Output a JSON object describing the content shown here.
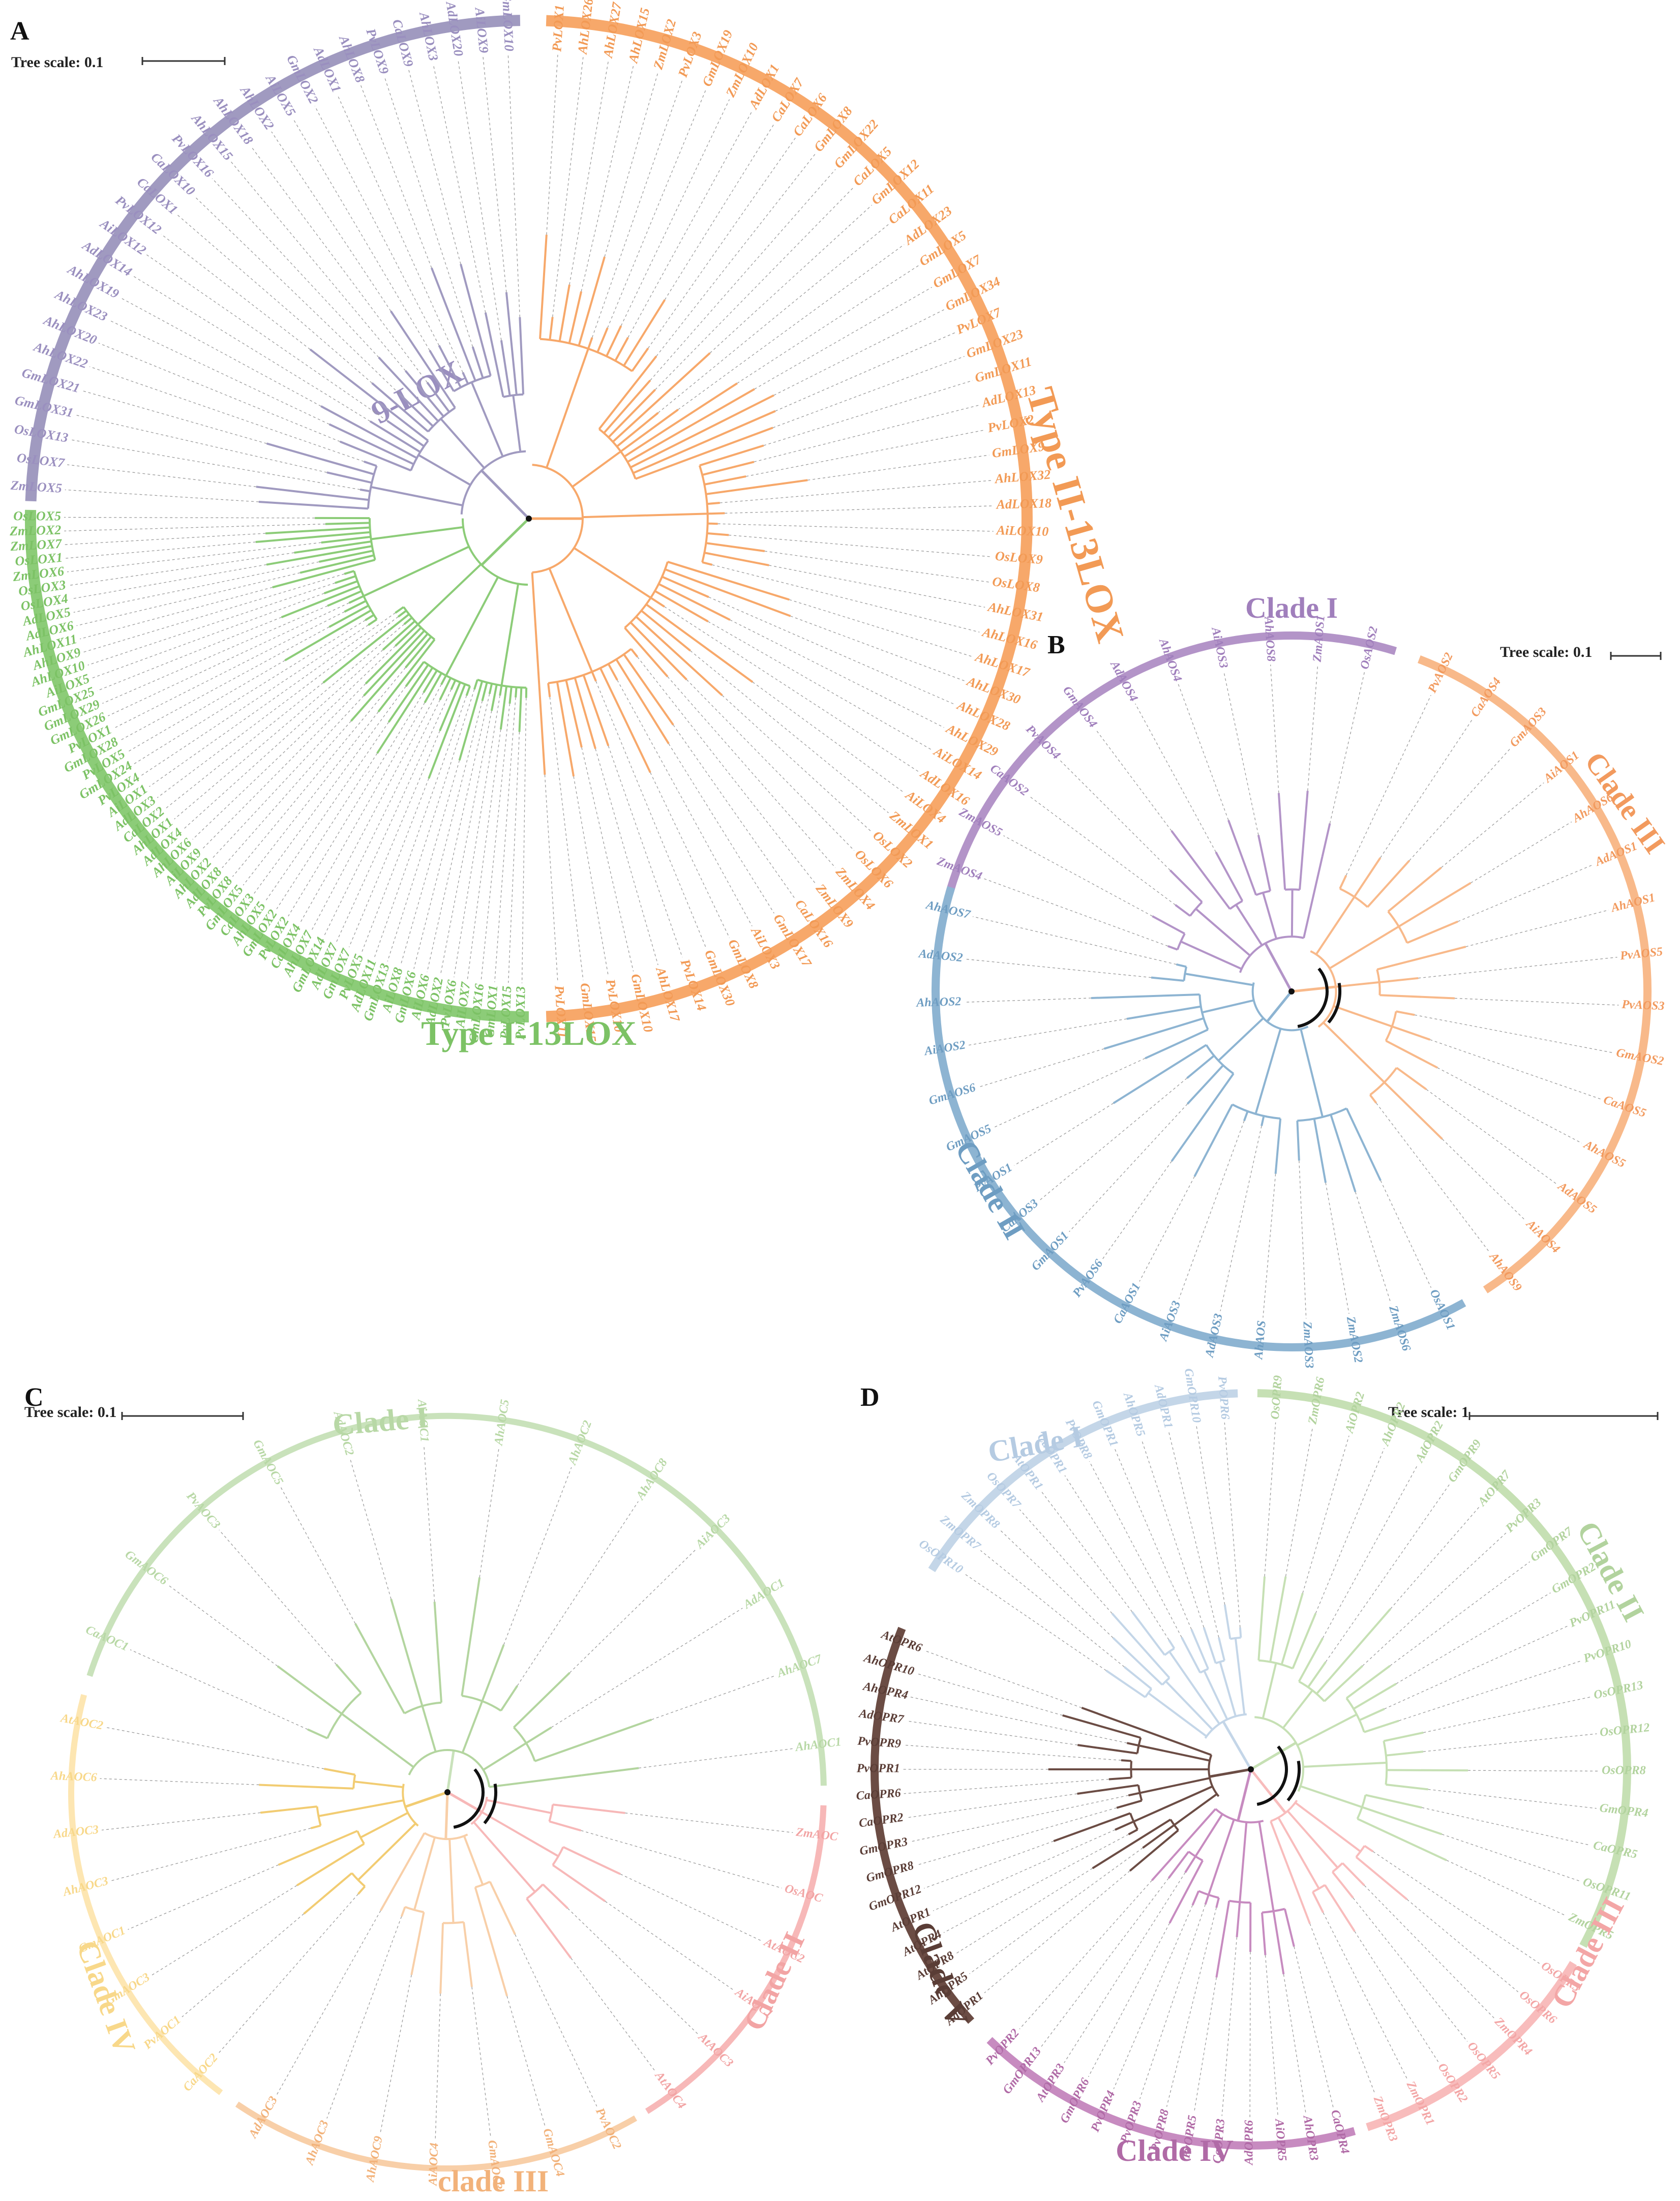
{
  "panels": [
    {
      "id": "A",
      "letter": "A",
      "scale_text": "Tree scale: 0.1",
      "center_label": "",
      "clades": [
        {
          "name": "9-LOX",
          "color": "#a09ac0",
          "label_color": "#9a8fbf",
          "taxa": [
            "ZmLOX5",
            "OsLOX7",
            "OsLOX13",
            "GmLOX31",
            "GmLOX21",
            "AhLOX22",
            "AhLOX20",
            "AhLOX23",
            "AhLOX19",
            "AdLOX14",
            "AiLOX12",
            "PvLOX12",
            "CaLOX1",
            "CaLOX10",
            "PvLOX16",
            "AhLOX15",
            "AhLOX18",
            "AhLOX2",
            "AiLOX5",
            "GmLOX2",
            "AdLOX1",
            "AhLOX8",
            "PvLOX9",
            "CaLOX9",
            "AhLOX3",
            "AdLOX20",
            "AiLOX9",
            "GmLOX10"
          ]
        },
        {
          "name": "Type II-13LOX",
          "color": "#f7a86a",
          "label_color": "#f29a55",
          "taxa": [
            "PvLOX1",
            "AhLOX26",
            "AhLOX27",
            "AhLOX15",
            "ZmLOX2",
            "PvLOX3",
            "GmLOX19",
            "ZmLOX10",
            "AdLOX1",
            "CaLOX7",
            "CaLOX6",
            "GmLOX8",
            "GmLOX22",
            "CaLOX5",
            "GmLOX12",
            "CaLOX11",
            "AdLOX23",
            "GmLOX5",
            "GmLOX7",
            "GmLOX34",
            "PvLOX7",
            "GmLOX23",
            "GmLOX11",
            "AdLOX13",
            "PvLOX2",
            "GmLOX9",
            "AhLOX32",
            "AdLOX18",
            "AiLOX10",
            "OsLOX9",
            "OsLOX8",
            "AhLOX31",
            "AhLOX16",
            "AhLOX17",
            "AhLOX30",
            "AhLOX28",
            "AhLOX29",
            "AiLOX14",
            "AdLOX16",
            "AiLOX4",
            "ZmLOX1",
            "OsLOX2",
            "OsLOX6",
            "ZmLOX4",
            "ZmLOX9",
            "CaLOX16",
            "GmLOX17",
            "AiLOX3",
            "GmLOX8",
            "GmLOX30",
            "PvLOX14",
            "AhLOX17",
            "GmLOX10",
            "PvLOX10",
            "GmLOX15",
            "PvLOX11"
          ]
        },
        {
          "name": "Type I-13LOX",
          "color": "#8ccc78",
          "label_color": "#7cc265",
          "taxa": [
            "PvLOX13",
            "PvLOX15",
            "GmLOX1",
            "GmLOX16",
            "AiLOX7",
            "PvLOX6",
            "AdLOX2",
            "AiLOX6",
            "GmLOX6",
            "AiLOX8",
            "GmLOX13",
            "AdLOX11",
            "PvLOX5",
            "GmLOX7",
            "AdLOX7",
            "GmLOX14",
            "AhLOX7",
            "CaLOX4",
            "PvLOX2",
            "GmLOX2",
            "AhLOX5",
            "CaLOX3",
            "GmLOX5",
            "PvLOX8",
            "AdLOX8",
            "AhLOX2",
            "AiLOX9",
            "AhLOX6",
            "AdLOX4",
            "AhLOX1",
            "CaLOX2",
            "AdLOX3",
            "AiLOX1",
            "PvLOX4",
            "GmLOX24",
            "PvLOX5",
            "GmLOX28",
            "PvLOX1",
            "GmLOX26",
            "GmLOX29",
            "GmLOX25",
            "AiLOX5",
            "AhLOX10",
            "AhLOX9",
            "AhLOX11",
            "AdLOX6",
            "AdLOX5",
            "OsLOX4",
            "OsLOX3",
            "ZmLOX6",
            "OsLOX1",
            "ZmLOX7",
            "ZmLOX2",
            "OsLOX5"
          ]
        }
      ]
    },
    {
      "id": "B",
      "letter": "B",
      "scale_text": "Tree scale: 0.1",
      "clades": [
        {
          "name": "Clade I",
          "color": "#b394c8",
          "label_color": "#a07fbc",
          "taxa": [
            "ZmAOS4",
            "ZmAOS5",
            "CaAOS2",
            "PvAOS4",
            "GmAOS4",
            "AdAOS4",
            "AhAOS4",
            "AiAOS3",
            "AhAOS8",
            "ZmAOS1",
            "OsAOS2"
          ]
        },
        {
          "name": "Clade III",
          "color": "#f8b98a",
          "label_color": "#f29a5e",
          "taxa": [
            "PvAOS2",
            "CaAOS4",
            "GmAOS3",
            "AiAOS1",
            "AhAOS6",
            "AdAOS1",
            "AhAOS1",
            "PvAOS5",
            "PvAOS3",
            "GmAOS2",
            "CaAOS5",
            "AhAOS5",
            "AdAOS5",
            "AiAOS4",
            "AhAOS9"
          ]
        },
        {
          "name": "Clade II",
          "color": "#8db4d2",
          "label_color": "#6e9dc2",
          "taxa": [
            "OsAOS1",
            "ZmAOS6",
            "ZmAOS2",
            "ZmAOS3",
            "AhAOS",
            "AdAOS3",
            "AiAOS3",
            "CaAOS1",
            "PvAOS6",
            "GmAOS1",
            "CaAOS3",
            "PvAOS1",
            "GmAOS5",
            "GmAOS6",
            "AiAOS2",
            "AhAOS2",
            "AdAOS2",
            "AhAOS7"
          ]
        }
      ]
    },
    {
      "id": "C",
      "letter": "C",
      "scale_text": "Tree scale: 0.1",
      "clades": [
        {
          "name": "Clade I",
          "color": "#c9e2bb",
          "label_color": "#b8d8a6",
          "taxa": [
            "CaAOC1",
            "GmAOC6",
            "PvAOC3",
            "GmAOC5",
            "AdAOC2",
            "AiAOC1",
            "AhAOC5",
            "AhAOC2",
            "AhAOC8",
            "AiAOC3",
            "AdAOC1",
            "AhAOC7",
            "AhAOC1"
          ]
        },
        {
          "name": "Clade II",
          "color": "#f7b8b8",
          "label_color": "#f2a4a4",
          "taxa": [
            "ZmAOC",
            "OsAOC",
            "AtAOC2",
            "AiAOC1",
            "AtAOC3",
            "AtAOC4"
          ]
        },
        {
          "name": "clade III",
          "color": "#f8cfa8",
          "label_color": "#f2b27a",
          "taxa": [
            "PvAOC2",
            "GmAOC4",
            "GmAOC3",
            "AiAOC4",
            "AhAOC9",
            "AhAOC3",
            "AdAOC3"
          ]
        },
        {
          "name": "Clade IV",
          "color": "#fde6b2",
          "label_color": "#f8d88a",
          "taxa": [
            "CaAOC2",
            "PvAOC1",
            "GmAOC3",
            "GmAOC1",
            "AhAOC3",
            "AdAOC3",
            "AhAOC6",
            "AtAOC2"
          ]
        }
      ]
    },
    {
      "id": "D",
      "letter": "D",
      "scale_text": "Tree scale: 1",
      "clades": [
        {
          "name": "Clade I",
          "color": "#c4d6e8",
          "label_color": "#b5cbe2",
          "taxa": [
            "OsOPR10",
            "ZmOPR7",
            "ZmOPR8",
            "OsOPR7",
            "AtOPR1",
            "CaOPR1",
            "PvOPR8",
            "GmOPR1",
            "AhOPR5",
            "AdOPR1",
            "GmOPR10",
            "PvOPR6"
          ]
        },
        {
          "name": "Clade II",
          "color": "#c6e0b4",
          "label_color": "#b2d39e",
          "taxa": [
            "OsOPR9",
            "ZmOPR6",
            "AiOPR2",
            "AhOPR2",
            "AdOPR2",
            "GmOPR9",
            "AtOPR7",
            "PvOPR3",
            "GmOPR7",
            "GmOPR2",
            "PvOPR11",
            "PvOPR10",
            "OsOPR13",
            "OsOPR12",
            "OsOPR8",
            "GmOPR4",
            "CaOPR5",
            "OsOPR11",
            "ZmOPR5"
          ]
        },
        {
          "name": "Clade III",
          "color": "#f8bcbc",
          "label_color": "#f3a6a6",
          "taxa": [
            "OsOPR3",
            "OsOPR6",
            "ZmOPR4",
            "OsOPR5",
            "OsOPR2",
            "ZmOPR1",
            "ZmOPR3"
          ]
        },
        {
          "name": "Clade IV",
          "color": "#c78bc0",
          "label_color": "#b06aa6",
          "taxa": [
            "CaOPR4",
            "AhOPR3",
            "AiOPR5",
            "AdOPR6",
            "CaOPR3",
            "PvOPR5",
            "PvOPR8",
            "PvOPR3",
            "PvOPR4",
            "GmOPR6",
            "AtOPR3",
            "GmOPR13",
            "PvOPR2"
          ]
        },
        {
          "name": "Clade V",
          "color": "#6b4c44",
          "label_color": "#5a3d36",
          "taxa": [
            "AdOPR1",
            "AhOPR5",
            "AtOPR8",
            "AtOPR4",
            "AtOPR1",
            "GmOPR12",
            "GmOPR8",
            "GmOPR3",
            "CaOPR2",
            "CaOPR6",
            "PvOPR1",
            "PvOPR9",
            "AdOPR7",
            "AhOPR4",
            "AhOPR10",
            "AtOPR6"
          ]
        }
      ]
    }
  ]
}
